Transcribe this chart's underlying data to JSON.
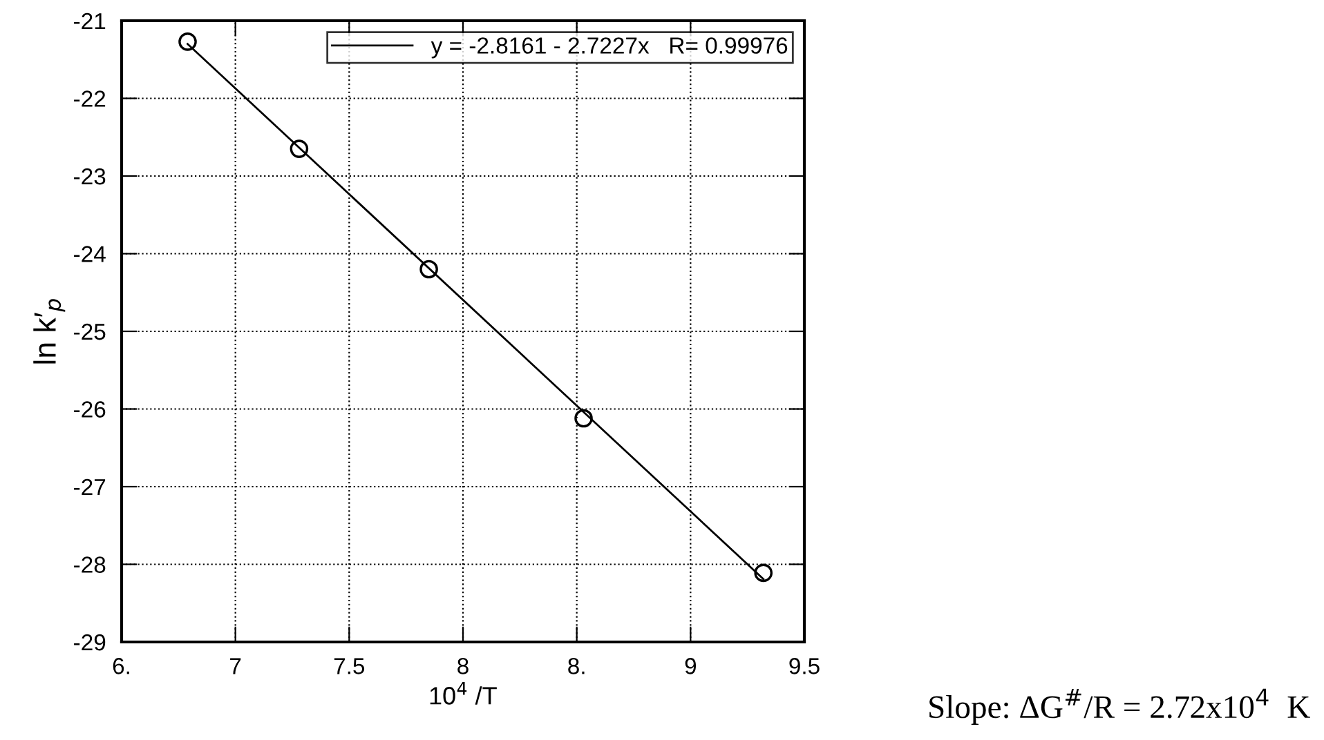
{
  "chart_data": {
    "type": "scatter",
    "xlabel": "10$^{4}$ /T",
    "ylabel": "ln k′$_{p}$",
    "xlim": [
      6.5,
      9.5
    ],
    "xticks": [
      {
        "value": 6.5,
        "label": "6."
      },
      7,
      7.5,
      8,
      {
        "value": 8.5,
        "label": "8."
      },
      9,
      9.5
    ],
    "ylim": [
      -29,
      -21
    ],
    "yticks": [
      -29,
      -28,
      -27,
      -26,
      -25,
      -24,
      -23,
      -22,
      -21
    ],
    "grid": true,
    "legend": "top right",
    "series": [
      {
        "marker": "circle",
        "color": "#000000",
        "x": [
          6.79,
          7.28,
          7.85,
          8.53,
          9.32
        ],
        "values": [
          -21.27,
          -22.65,
          -24.2,
          -26.12,
          -28.11
        ]
      },
      {
        "type": "line",
        "name": "y = -2.8161 - 2.7227x   R= 0.99976",
        "color": "#000000",
        "line_style": "solid",
        "marker": "none",
        "x": [
          6.79,
          9.32
        ],
        "values": [
          -21.3,
          -28.19
        ]
      }
    ],
    "annotations": [
      "Slope: ΔG$^{#}$/R = 2.72x10$^{4}$  K"
    ]
  }
}
